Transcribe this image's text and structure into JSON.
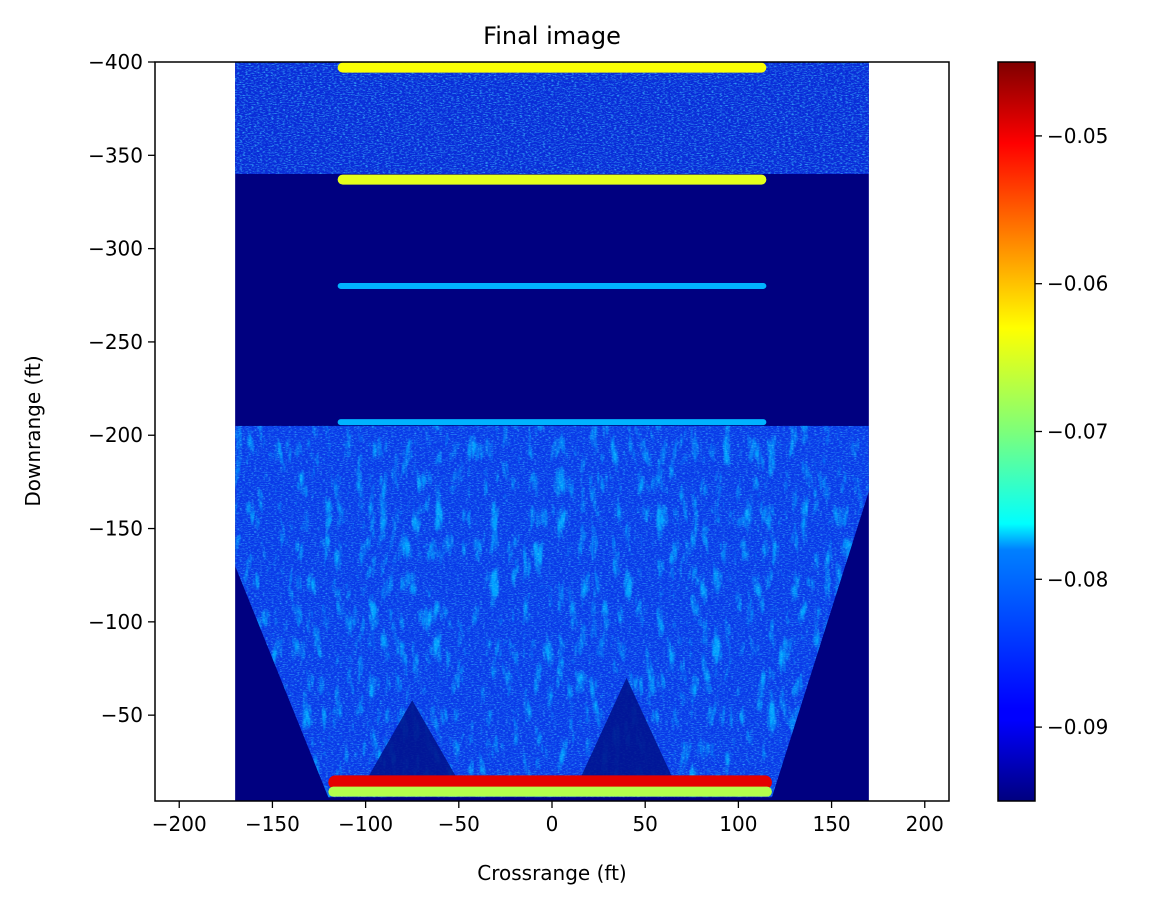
{
  "chart_data": {
    "type": "heatmap",
    "title": "Final image",
    "xlabel": "Crossrange (ft)",
    "ylabel": "Downrange (ft)",
    "xlim": [
      -213,
      213
    ],
    "ylim": [
      -400,
      -4
    ],
    "y_inverted": true,
    "x_ticks": [
      -200,
      -150,
      -100,
      -50,
      0,
      50,
      100,
      150,
      200
    ],
    "x_tick_labels": [
      "−200",
      "−150",
      "−100",
      "−50",
      "0",
      "50",
      "100",
      "150",
      "200"
    ],
    "y_ticks": [
      -400,
      -350,
      -300,
      -250,
      -200,
      -150,
      -100,
      -50
    ],
    "y_tick_labels": [
      "−400",
      "−350",
      "−300",
      "−250",
      "−200",
      "−150",
      "−100",
      "−50"
    ],
    "image_extent_x": [
      -170,
      170
    ],
    "image_extent_y": [
      -400,
      -4
    ],
    "colormap": "jet",
    "colorbar": {
      "min": -0.095,
      "max": -0.045,
      "ticks": [
        -0.09,
        -0.08,
        -0.07,
        -0.06,
        -0.05
      ],
      "tick_labels": [
        "−0.09",
        "−0.08",
        "−0.07",
        "−0.06",
        "−0.05"
      ]
    },
    "grid": false,
    "features": [
      {
        "kind": "bright-band",
        "y": -397,
        "x_range": [
          -115,
          115
        ],
        "level": 0.62
      },
      {
        "kind": "bright-band",
        "y": -337,
        "x_range": [
          -115,
          115
        ],
        "level": 0.6
      },
      {
        "kind": "faint-band",
        "y": -280,
        "x_range": [
          -115,
          115
        ],
        "level": 0.3
      },
      {
        "kind": "faint-band",
        "y": -207,
        "x_range": [
          -115,
          115
        ],
        "level": 0.3
      },
      {
        "kind": "strong-band",
        "y": -14,
        "x_range": [
          -120,
          118
        ],
        "level": 0.9
      },
      {
        "kind": "edge-band",
        "y": -9,
        "x_range": [
          -120,
          118
        ],
        "level": 0.55
      }
    ]
  }
}
